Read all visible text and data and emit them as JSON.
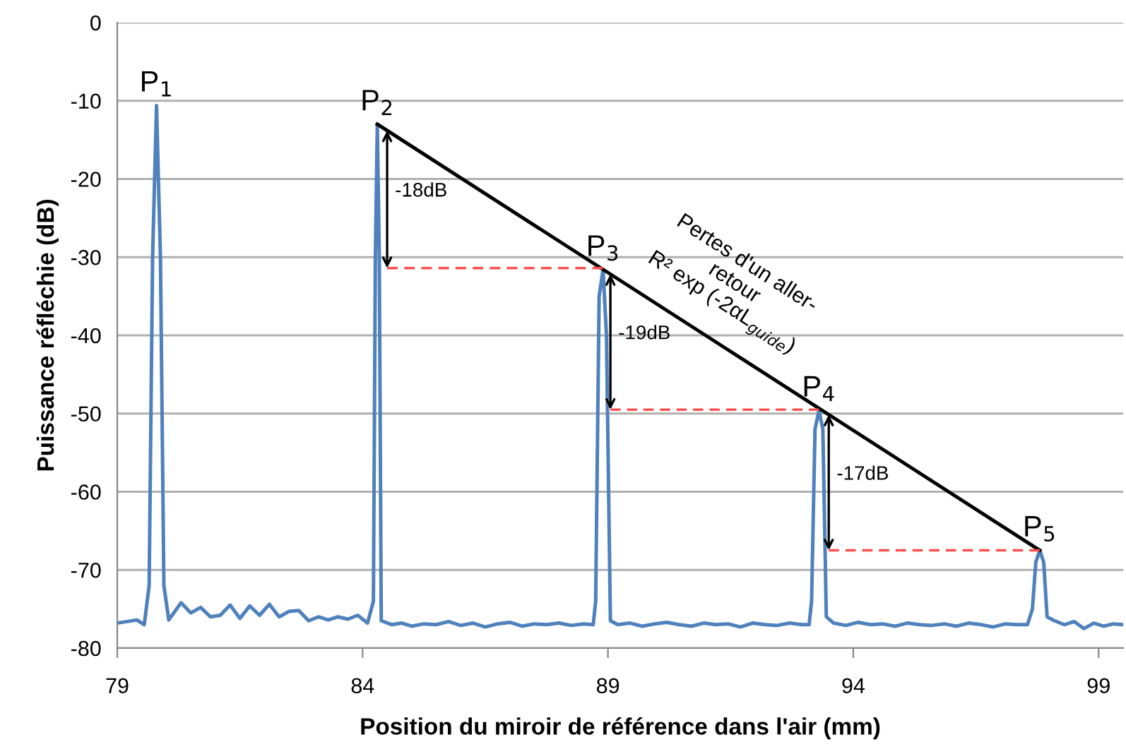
{
  "chart_data": {
    "type": "line",
    "xlabel": "Position du miroir de référence dans l'air (mm)",
    "ylabel": "Puissance réfléchie (dB)",
    "xlim": [
      79,
      99.5
    ],
    "xticks": [
      79,
      84,
      89,
      94,
      99
    ],
    "ylim": [
      -80,
      0
    ],
    "yticks": [
      0,
      -10,
      -20,
      -30,
      -40,
      -50,
      -60,
      -70,
      -80
    ],
    "grid": "y",
    "marker": "none",
    "legend": false,
    "series": [
      {
        "color": "#4f81bd",
        "line_style": "solid",
        "x": [
          79,
          79.2,
          79.4,
          79.55,
          79.65,
          79.72,
          79.8,
          79.88,
          79.95,
          80.05,
          80.3,
          80.5,
          80.7,
          80.9,
          81.1,
          81.3,
          81.5,
          81.7,
          81.9,
          82.1,
          82.3,
          82.5,
          82.7,
          82.9,
          83.1,
          83.3,
          83.5,
          83.7,
          83.9,
          84.1,
          84.22,
          84.26,
          84.3,
          84.34,
          84.38,
          84.6,
          84.8,
          85.0,
          85.25,
          85.5,
          85.75,
          86.0,
          86.25,
          86.5,
          86.75,
          87.0,
          87.25,
          87.5,
          87.75,
          88.0,
          88.25,
          88.5,
          88.7,
          88.75,
          88.82,
          88.9,
          88.97,
          89.05,
          89.2,
          89.45,
          89.7,
          89.95,
          90.2,
          90.45,
          90.7,
          90.95,
          91.2,
          91.45,
          91.7,
          91.95,
          92.2,
          92.45,
          92.7,
          92.95,
          93.1,
          93.15,
          93.22,
          93.3,
          93.38,
          93.45,
          93.6,
          93.85,
          94.1,
          94.35,
          94.6,
          94.85,
          95.1,
          95.35,
          95.6,
          95.85,
          96.1,
          96.35,
          96.6,
          96.85,
          97.1,
          97.35,
          97.55,
          97.65,
          97.72,
          97.8,
          97.88,
          97.95,
          98.1,
          98.3,
          98.5,
          98.7,
          98.9,
          99.1,
          99.3,
          99.5
        ],
        "values": [
          -76.8,
          -76.6,
          -76.4,
          -77.0,
          -72,
          -30,
          -10.6,
          -30,
          -72,
          -76.4,
          -74.2,
          -75.5,
          -74.8,
          -76.0,
          -75.8,
          -74.5,
          -76.2,
          -74.6,
          -75.8,
          -74.4,
          -76.0,
          -75.3,
          -75.2,
          -76.5,
          -76.0,
          -76.4,
          -76.0,
          -76.3,
          -75.8,
          -76.8,
          -74,
          -30,
          -13,
          -30,
          -76.5,
          -77.0,
          -76.8,
          -77.2,
          -76.9,
          -77.0,
          -76.6,
          -77.1,
          -76.8,
          -77.3,
          -76.9,
          -76.7,
          -77.2,
          -76.9,
          -77.0,
          -76.8,
          -77.1,
          -76.9,
          -77.0,
          -74,
          -35,
          -31.6,
          -40,
          -76.5,
          -77.0,
          -76.8,
          -77.2,
          -76.9,
          -76.7,
          -77.0,
          -77.2,
          -76.8,
          -77.0,
          -76.9,
          -77.3,
          -76.8,
          -77.0,
          -77.1,
          -76.8,
          -77.0,
          -77.0,
          -74,
          -52,
          -49.6,
          -52,
          -76.0,
          -76.8,
          -77.1,
          -76.7,
          -77.0,
          -76.9,
          -77.2,
          -76.8,
          -77.0,
          -77.1,
          -76.9,
          -77.2,
          -76.8,
          -77.0,
          -77.3,
          -76.9,
          -77.0,
          -77.0,
          -75,
          -69,
          -67.5,
          -69,
          -76.0,
          -76.5,
          -77.0,
          -76.6,
          -77.5,
          -76.8,
          -77.2,
          -76.9,
          -77.0
        ]
      },
      {
        "color": "#000000",
        "line_style": "solid",
        "x": [
          84.3,
          97.8
        ],
        "values": [
          -13,
          -67.5
        ]
      },
      {
        "color": "#ff5050",
        "line_style": "dashed",
        "x": [
          84.5,
          88.9
        ],
        "values": [
          -31.4,
          -31.4
        ]
      },
      {
        "color": "#ff5050",
        "line_style": "dashed",
        "x": [
          89.05,
          93.3
        ],
        "values": [
          -49.5,
          -49.5
        ]
      },
      {
        "color": "#ff5050",
        "line_style": "dashed",
        "x": [
          93.5,
          97.8
        ],
        "values": [
          -67.5,
          -67.5
        ]
      }
    ],
    "annotations": [
      {
        "text": "P$_{1}$",
        "x": 79.8,
        "y": -10.6
      },
      {
        "text": "P$_{2}$",
        "x": 84.3,
        "y": -13
      },
      {
        "text": "P$_{3}$",
        "x": 88.9,
        "y": -31.6
      },
      {
        "text": "P$_{4}$",
        "x": 93.3,
        "y": -49.6
      },
      {
        "text": "P$_{5}$",
        "x": 97.8,
        "y": -67.5
      },
      {
        "text": "Pertes d'un aller-\nretour\nR² exp (-2αL$_{guide}$)",
        "x": 91,
        "y": -40
      },
      "-18dB",
      "-19dB",
      "-17dB"
    ]
  }
}
